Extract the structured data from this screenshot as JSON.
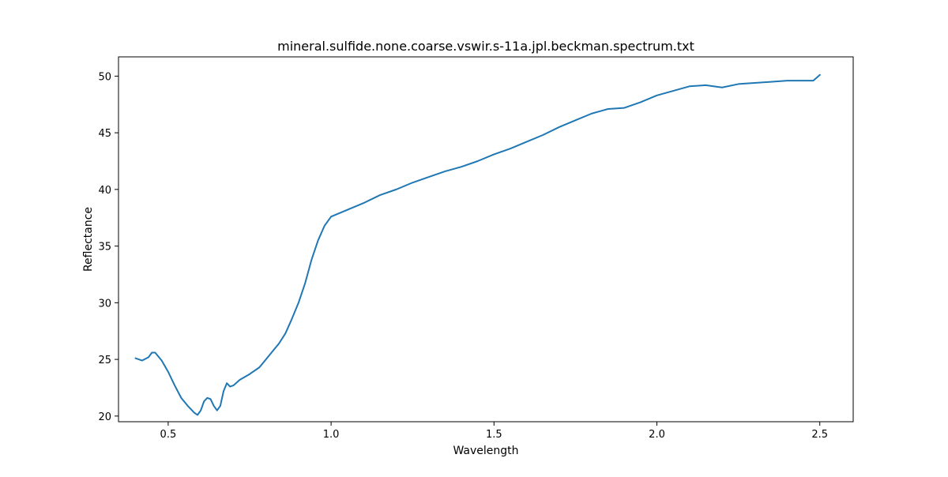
{
  "chart_data": {
    "type": "line",
    "title": "mineral.sulfide.none.coarse.vswir.s-11a.jpl.beckman.spectrum.txt",
    "xlabel": "Wavelength",
    "ylabel": "Reflectance",
    "xlim": [
      0.3475,
      2.6025
    ],
    "ylim": [
      19.5,
      51.7
    ],
    "xticks": [
      0.5,
      1.0,
      1.5,
      2.0,
      2.5
    ],
    "xtick_labels": [
      "0.5",
      "1.0",
      "1.5",
      "2.0",
      "2.5"
    ],
    "yticks": [
      20,
      25,
      30,
      35,
      40,
      45,
      50
    ],
    "ytick_labels": [
      "20",
      "25",
      "30",
      "35",
      "40",
      "45",
      "50"
    ],
    "grid": false,
    "legend": "none",
    "series": [
      {
        "color": "#1f77b4",
        "points": [
          [
            0.4,
            25.1
          ],
          [
            0.42,
            24.9
          ],
          [
            0.44,
            25.2
          ],
          [
            0.45,
            25.6
          ],
          [
            0.46,
            25.6
          ],
          [
            0.48,
            24.9
          ],
          [
            0.5,
            23.9
          ],
          [
            0.52,
            22.7
          ],
          [
            0.54,
            21.6
          ],
          [
            0.56,
            20.9
          ],
          [
            0.58,
            20.3
          ],
          [
            0.59,
            20.1
          ],
          [
            0.6,
            20.5
          ],
          [
            0.61,
            21.3
          ],
          [
            0.62,
            21.6
          ],
          [
            0.63,
            21.5
          ],
          [
            0.64,
            20.9
          ],
          [
            0.65,
            20.5
          ],
          [
            0.66,
            20.9
          ],
          [
            0.67,
            22.2
          ],
          [
            0.68,
            22.9
          ],
          [
            0.69,
            22.6
          ],
          [
            0.7,
            22.7
          ],
          [
            0.72,
            23.2
          ],
          [
            0.75,
            23.7
          ],
          [
            0.78,
            24.3
          ],
          [
            0.8,
            25.0
          ],
          [
            0.82,
            25.7
          ],
          [
            0.84,
            26.4
          ],
          [
            0.86,
            27.3
          ],
          [
            0.88,
            28.6
          ],
          [
            0.9,
            30.0
          ],
          [
            0.92,
            31.7
          ],
          [
            0.94,
            33.8
          ],
          [
            0.96,
            35.5
          ],
          [
            0.98,
            36.8
          ],
          [
            1.0,
            37.6
          ],
          [
            1.05,
            38.2
          ],
          [
            1.1,
            38.8
          ],
          [
            1.15,
            39.5
          ],
          [
            1.2,
            40.0
          ],
          [
            1.25,
            40.6
          ],
          [
            1.3,
            41.1
          ],
          [
            1.35,
            41.6
          ],
          [
            1.4,
            42.0
          ],
          [
            1.45,
            42.5
          ],
          [
            1.5,
            43.1
          ],
          [
            1.55,
            43.6
          ],
          [
            1.6,
            44.2
          ],
          [
            1.65,
            44.8
          ],
          [
            1.7,
            45.5
          ],
          [
            1.75,
            46.1
          ],
          [
            1.8,
            46.7
          ],
          [
            1.85,
            47.1
          ],
          [
            1.9,
            47.2
          ],
          [
            1.95,
            47.7
          ],
          [
            2.0,
            48.3
          ],
          [
            2.05,
            48.7
          ],
          [
            2.1,
            49.1
          ],
          [
            2.15,
            49.2
          ],
          [
            2.2,
            49.0
          ],
          [
            2.25,
            49.3
          ],
          [
            2.3,
            49.4
          ],
          [
            2.35,
            49.5
          ],
          [
            2.4,
            49.6
          ],
          [
            2.45,
            49.6
          ],
          [
            2.48,
            49.6
          ],
          [
            2.5,
            50.1
          ]
        ]
      }
    ]
  }
}
